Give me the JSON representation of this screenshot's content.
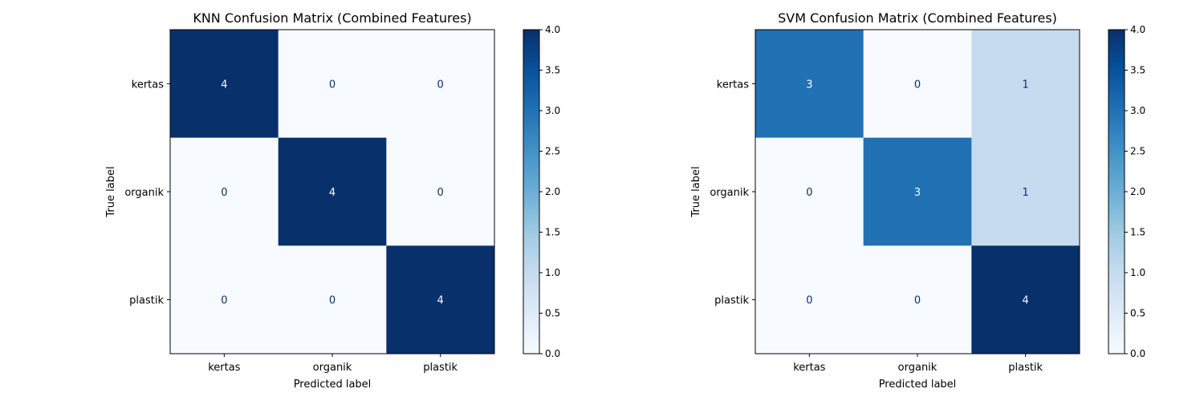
{
  "chart_data": [
    {
      "type": "heatmap",
      "title": "KNN Confusion Matrix (Combined Features)",
      "xlabel": "Predicted label",
      "ylabel": "True label",
      "x_categories": [
        "kertas",
        "organik",
        "plastik"
      ],
      "y_categories": [
        "kertas",
        "organik",
        "plastik"
      ],
      "values": [
        [
          4,
          0,
          0
        ],
        [
          0,
          4,
          0
        ],
        [
          0,
          0,
          4
        ]
      ],
      "colormap": "Blues",
      "vmin": 0,
      "vmax": 4,
      "colorbar_ticks": [
        "0.0",
        "0.5",
        "1.0",
        "1.5",
        "2.0",
        "2.5",
        "3.0",
        "3.5",
        "4.0"
      ]
    },
    {
      "type": "heatmap",
      "title": "SVM Confusion Matrix (Combined Features)",
      "xlabel": "Predicted label",
      "ylabel": "True label",
      "x_categories": [
        "kertas",
        "organik",
        "plastik"
      ],
      "y_categories": [
        "kertas",
        "organik",
        "plastik"
      ],
      "values": [
        [
          3,
          0,
          1
        ],
        [
          0,
          3,
          1
        ],
        [
          0,
          0,
          4
        ]
      ],
      "colormap": "Blues",
      "vmin": 0,
      "vmax": 4,
      "colorbar_ticks": [
        "0.0",
        "0.5",
        "1.0",
        "1.5",
        "2.0",
        "2.5",
        "3.0",
        "3.5",
        "4.0"
      ]
    }
  ]
}
